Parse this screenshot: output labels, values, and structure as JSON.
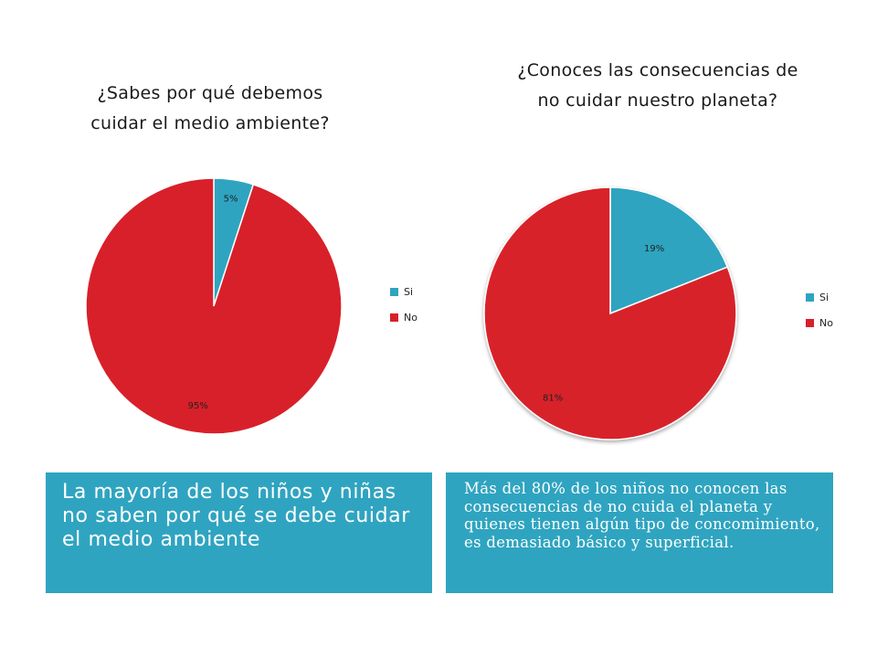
{
  "colors": {
    "si": "#2fa4c0",
    "no": "#d8202a",
    "caption_bg": "#2fa4c0"
  },
  "chart_data": [
    {
      "type": "pie",
      "title": "¿Sabes por qué debemos cuidar el medio ambiente?",
      "title_lines": [
        "¿Sabes por qué debemos",
        "cuidar el medio ambiente?"
      ],
      "categories": [
        "Si",
        "No"
      ],
      "values": [
        5,
        95
      ],
      "data_labels": [
        "5%",
        "95%"
      ],
      "legend": "right"
    },
    {
      "type": "pie",
      "title": "¿Conoces las consecuencias de no cuidar nuestro planeta?",
      "title_lines": [
        "¿Conoces las consecuencias de",
        "no cuidar nuestro planeta?"
      ],
      "categories": [
        "Si",
        "No"
      ],
      "values": [
        19,
        81
      ],
      "data_labels": [
        "19%",
        "81%"
      ],
      "legend": "right"
    }
  ],
  "captions": {
    "left": "La mayoría de los niños y niñas no saben por qué se debe cuidar el medio ambiente",
    "right": "Más del 80% de los niños no conocen las consecuencias de no cuida el planeta y quienes tienen algún tipo de concomimiento, es demasiado básico y superficial."
  }
}
